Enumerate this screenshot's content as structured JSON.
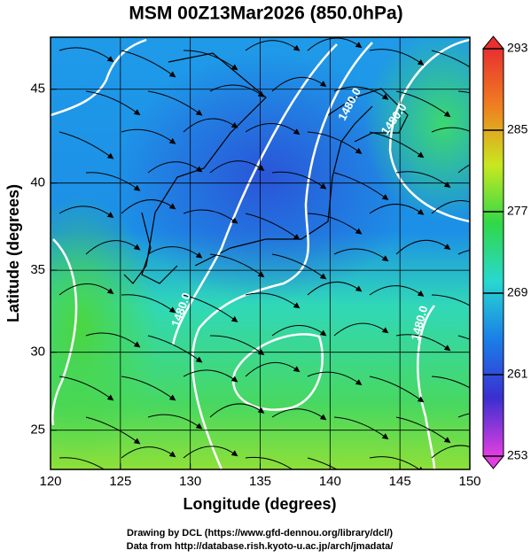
{
  "chart_data": {
    "type": "map",
    "title": "MSM 00Z13Mar2026 (850.0hPa)",
    "x_label": "Longitude (degrees)",
    "y_label": "Latitude  (degrees)",
    "projection": "mercator",
    "xlim": [
      120,
      150
    ],
    "ylim": [
      22.4,
      47.6
    ],
    "xticks": [
      120,
      125,
      130,
      135,
      140,
      145,
      150
    ],
    "yticks": [
      25,
      30,
      35,
      40,
      45
    ],
    "grid": true,
    "colorbar": {
      "clim": [
        253,
        293
      ],
      "ticks": [
        253,
        261,
        269,
        277,
        285,
        293
      ],
      "colors": [
        "#e23ee0",
        "#3a2fd0",
        "#1a7ee8",
        "#28d8d0",
        "#30d848",
        "#c8e820",
        "#f08020",
        "#e83030"
      ]
    },
    "contour_labels": [
      "1480.0",
      "1480.0",
      "1480.0",
      "1480.0"
    ],
    "footer": [
      "Drawing by DCL (https://www.gfd-dennou.org/library/dcl/)",
      "Data from http://database.rish.kyoto-u.ac.jp/arch/jmadata/"
    ]
  }
}
